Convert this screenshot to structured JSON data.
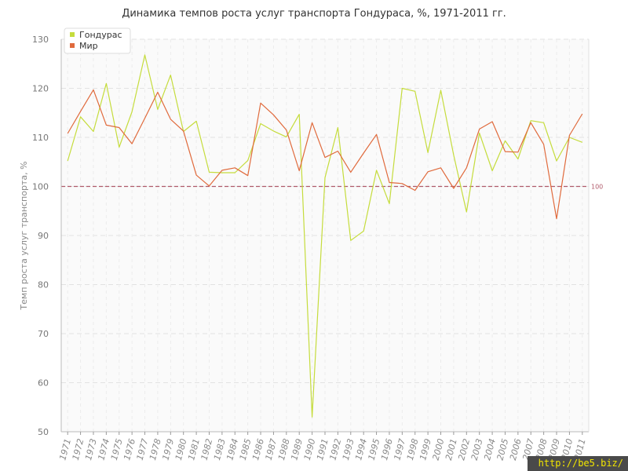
{
  "title": "Динамика темпов роста услуг транспорта Гондураса, %, 1971-2011 гг.",
  "watermark": "http://be5.biz/",
  "chart_data": {
    "type": "line",
    "title": "Динамика темпов роста услуг транспорта Гондураса, %, 1971-2011 гг.",
    "xlabel": "",
    "ylabel": "Темп роста услуг транспорта, %",
    "x": [
      "1971",
      "1972",
      "1973",
      "1974",
      "1975",
      "1976",
      "1977",
      "1978",
      "1979",
      "1980",
      "1981",
      "1982",
      "1983",
      "1984",
      "1985",
      "1986",
      "1987",
      "1988",
      "1989",
      "1990",
      "1991",
      "1992",
      "1993",
      "1994",
      "1995",
      "1996",
      "1997",
      "1998",
      "1999",
      "2000",
      "2001",
      "2002",
      "2003",
      "2004",
      "2005",
      "2006",
      "2007",
      "2008",
      "2009",
      "2010",
      "2011"
    ],
    "yticks": [
      50,
      60,
      70,
      80,
      90,
      100,
      110,
      120,
      130
    ],
    "ylim": [
      50,
      130
    ],
    "grid": true,
    "legend_position": "top-left",
    "reference_line": {
      "value": 100,
      "label": "100",
      "color": "#b05a6a"
    },
    "series": [
      {
        "name": "Гондурас",
        "color": "#c5dc3c",
        "values": [
          105.2,
          114.2,
          111.2,
          121.0,
          108.0,
          115.2,
          126.8,
          115.7,
          122.7,
          111.2,
          113.3,
          102.9,
          102.8,
          102.8,
          105.3,
          112.8,
          111.3,
          110.1,
          114.7,
          53.0,
          101.8,
          112.0,
          89.0,
          90.9,
          103.3,
          96.5,
          120.0,
          119.4,
          106.9,
          119.6,
          106.4,
          94.8,
          110.9,
          103.2,
          109.3,
          105.6,
          113.4,
          113.0,
          105.2,
          110.0,
          109.0
        ]
      },
      {
        "name": "Мир",
        "color": "#e06a3c",
        "values": [
          110.8,
          115.3,
          119.7,
          112.5,
          112.0,
          108.7,
          113.9,
          119.2,
          113.7,
          111.3,
          102.3,
          100.1,
          103.3,
          103.8,
          102.2,
          117.0,
          114.6,
          111.5,
          103.2,
          113.0,
          105.9,
          107.2,
          102.9,
          106.8,
          110.6,
          100.8,
          100.6,
          99.2,
          103.0,
          103.8,
          99.6,
          103.8,
          111.7,
          113.2,
          107.1,
          107.0,
          113.0,
          108.6,
          93.4,
          110.4,
          114.8
        ]
      }
    ]
  }
}
